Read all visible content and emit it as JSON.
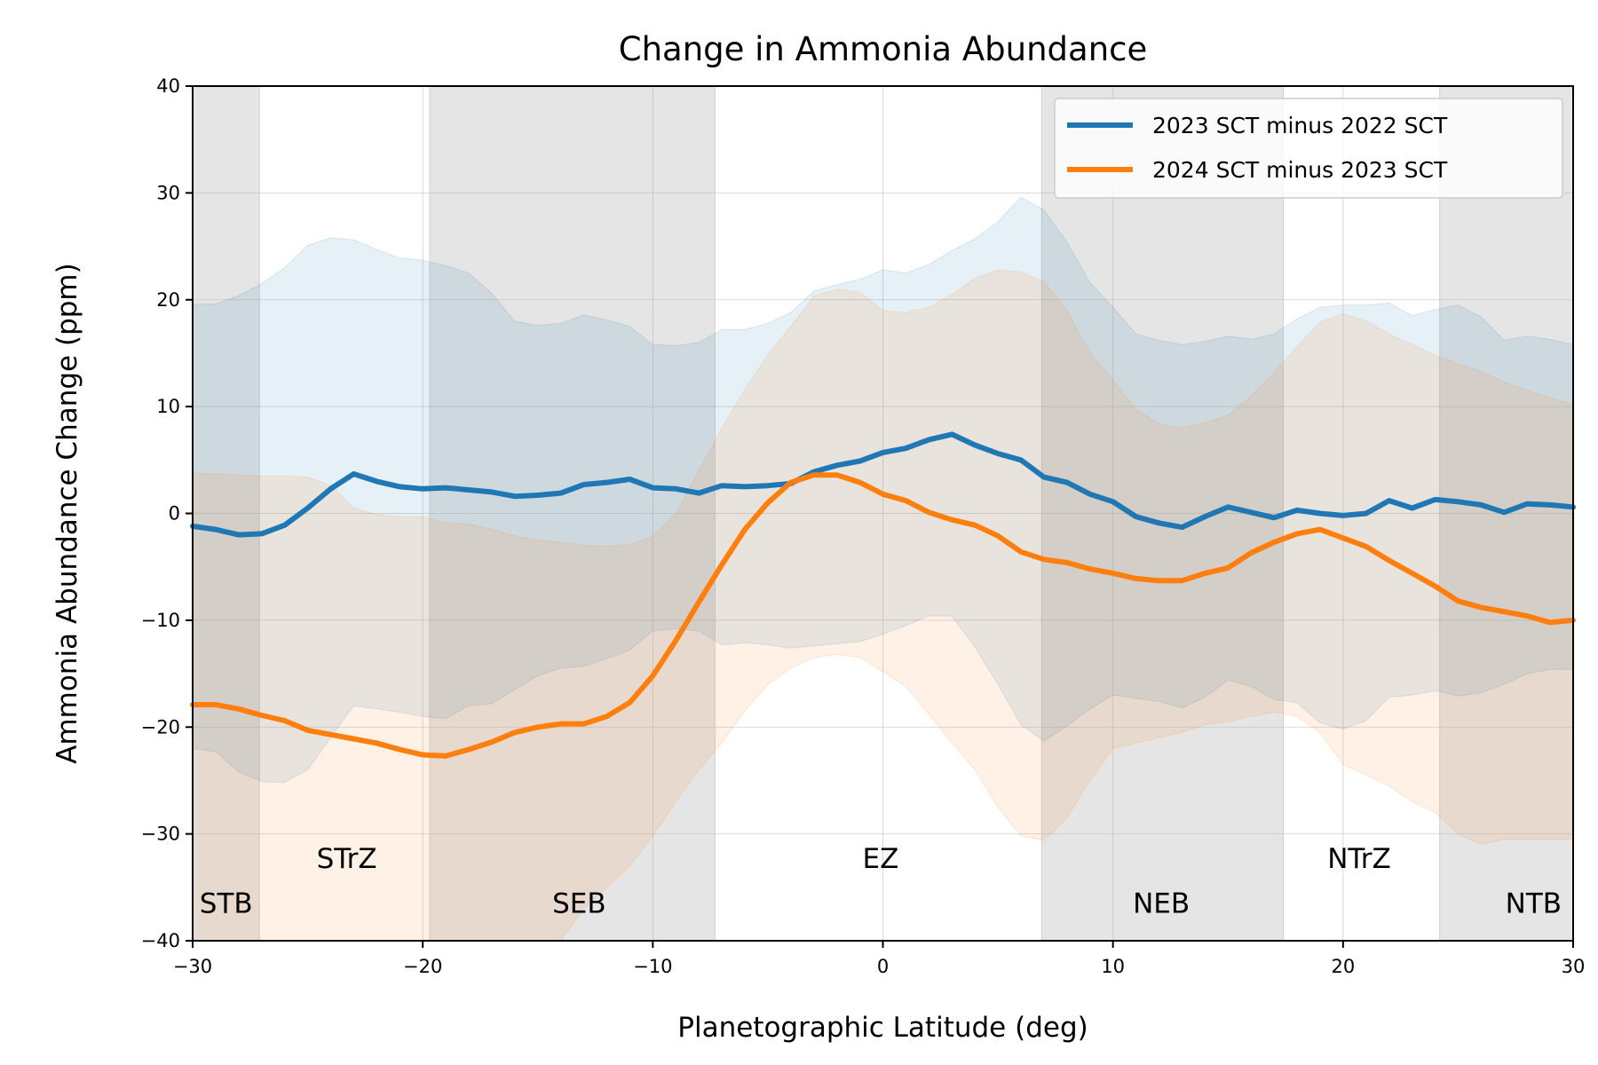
{
  "chart_data": {
    "type": "line",
    "title": "Change in Ammonia Abundance",
    "xlabel": "Planetographic Latitude (deg)",
    "ylabel": "Ammonia Abundance Change (ppm)",
    "xlim": [
      -30,
      30
    ],
    "ylim": [
      -40,
      40
    ],
    "xticks": [
      -30,
      -20,
      -10,
      0,
      10,
      20,
      30
    ],
    "xtick_labels": [
      "−30",
      "−20",
      "−10",
      "0",
      "10",
      "20",
      "30"
    ],
    "yticks": [
      -40,
      -30,
      -20,
      -10,
      0,
      10,
      20,
      30,
      40
    ],
    "ytick_labels": [
      "−40",
      "−30",
      "−20",
      "−10",
      "0",
      "10",
      "20",
      "30",
      "40"
    ],
    "grid": true,
    "legend_position": "top-right",
    "belts": [
      {
        "name": "STB",
        "x0": -30,
        "x1": -27.1
      },
      {
        "name": "SEB",
        "x0": -19.7,
        "x1": -7.3
      },
      {
        "name": "NEB",
        "x0": 6.9,
        "x1": 17.4
      },
      {
        "name": "NTB",
        "x0": 24.2,
        "x1": 30
      }
    ],
    "region_labels": [
      {
        "text": "STB",
        "x": -29.7,
        "y": -37.4,
        "anchor": "start"
      },
      {
        "text": "STrZ",
        "x": -23.3,
        "y": -33.2,
        "anchor": "middle"
      },
      {
        "text": "SEB",
        "x": -13.2,
        "y": -37.4,
        "anchor": "middle"
      },
      {
        "text": "EZ",
        "x": -0.1,
        "y": -33.2,
        "anchor": "middle"
      },
      {
        "text": "NEB",
        "x": 12.1,
        "y": -37.4,
        "anchor": "middle"
      },
      {
        "text": "NTrZ",
        "x": 20.7,
        "y": -33.2,
        "anchor": "middle"
      },
      {
        "text": "NTB",
        "x": 29.5,
        "y": -37.4,
        "anchor": "end"
      }
    ],
    "x": [
      -30,
      -29,
      -28,
      -27,
      -26,
      -25,
      -24,
      -23,
      -22,
      -21,
      -20,
      -19,
      -18,
      -17,
      -16,
      -15,
      -14,
      -13,
      -12,
      -11,
      -10,
      -9,
      -8,
      -7,
      -6,
      -5,
      -4,
      -3,
      -2,
      -1,
      0,
      1,
      2,
      3,
      4,
      5,
      6,
      7,
      8,
      9,
      10,
      11,
      12,
      13,
      14,
      15,
      16,
      17,
      18,
      19,
      20,
      21,
      22,
      23,
      24,
      25,
      26,
      27,
      28,
      29,
      30
    ],
    "series": [
      {
        "name": "2023 SCT minus 2022 SCT",
        "color": "#1f77b4",
        "values": [
          -1.2,
          -1.5,
          -2.0,
          -1.9,
          -1.1,
          0.5,
          2.3,
          3.7,
          3.0,
          2.5,
          2.3,
          2.4,
          2.2,
          2.0,
          1.6,
          1.7,
          1.9,
          2.7,
          2.9,
          3.2,
          2.4,
          2.3,
          1.9,
          2.6,
          2.5,
          2.6,
          2.8,
          3.9,
          4.5,
          4.9,
          5.7,
          6.1,
          6.9,
          7.4,
          6.4,
          5.6,
          5.0,
          3.4,
          2.9,
          1.8,
          1.1,
          -0.3,
          -0.9,
          -1.3,
          -0.3,
          0.6,
          0.1,
          -0.4,
          0.3,
          0.0,
          -0.2,
          0.0,
          1.2,
          0.5,
          1.3,
          1.1,
          0.8,
          0.1,
          0.9,
          0.8,
          0.6
        ],
        "upper": [
          19.6,
          19.6,
          20.4,
          21.5,
          23.0,
          25.1,
          25.8,
          25.6,
          24.7,
          23.9,
          23.7,
          23.2,
          22.5,
          20.6,
          18.0,
          17.6,
          17.8,
          18.6,
          18.1,
          17.5,
          15.8,
          15.7,
          16.0,
          17.2,
          17.2,
          17.8,
          18.8,
          20.8,
          21.4,
          21.9,
          22.8,
          22.5,
          23.3,
          24.6,
          25.7,
          27.3,
          29.6,
          28.4,
          25.4,
          21.6,
          19.3,
          16.8,
          16.2,
          15.8,
          16.1,
          16.6,
          16.3,
          16.8,
          18.2,
          19.3,
          19.5,
          19.5,
          19.7,
          18.5,
          19.1,
          19.5,
          18.4,
          16.2,
          16.6,
          16.3,
          15.8
        ],
        "lower": [
          -22.0,
          -22.3,
          -24.2,
          -25.1,
          -25.2,
          -24.0,
          -21.0,
          -18.0,
          -18.3,
          -18.6,
          -19.0,
          -19.2,
          -18.0,
          -17.8,
          -16.5,
          -15.2,
          -14.5,
          -14.3,
          -13.6,
          -12.8,
          -11.0,
          -10.8,
          -11.0,
          -12.3,
          -12.1,
          -12.3,
          -12.6,
          -12.4,
          -12.2,
          -12.0,
          -11.3,
          -10.5,
          -9.6,
          -9.6,
          -12.5,
          -16.0,
          -19.8,
          -21.3,
          -19.9,
          -18.3,
          -17.0,
          -17.3,
          -17.6,
          -18.2,
          -17.2,
          -15.6,
          -16.2,
          -17.4,
          -17.7,
          -19.6,
          -20.2,
          -19.4,
          -17.2,
          -17.0,
          -16.6,
          -17.1,
          -16.8,
          -16.0,
          -15.0,
          -14.6,
          -14.6
        ]
      },
      {
        "name": "2024 SCT minus 2023 SCT",
        "color": "#ff7f0e",
        "values": [
          -17.9,
          -17.9,
          -18.3,
          -18.9,
          -19.4,
          -20.3,
          -20.7,
          -21.1,
          -21.5,
          -22.1,
          -22.6,
          -22.7,
          -22.1,
          -21.4,
          -20.5,
          -20.0,
          -19.7,
          -19.7,
          -19.0,
          -17.7,
          -15.2,
          -11.9,
          -8.3,
          -4.8,
          -1.5,
          1.0,
          2.9,
          3.6,
          3.6,
          2.9,
          1.8,
          1.2,
          0.1,
          -0.6,
          -1.1,
          -2.1,
          -3.6,
          -4.3,
          -4.6,
          -5.2,
          -5.6,
          -6.1,
          -6.3,
          -6.3,
          -5.6,
          -5.1,
          -3.7,
          -2.7,
          -1.9,
          -1.5,
          -2.3,
          -3.1,
          -4.4,
          -5.6,
          -6.8,
          -8.2,
          -8.8,
          -9.2,
          -9.6,
          -10.2,
          -10.0
        ]
      }
    ],
    "orange_band_upper": [
      3.8,
      3.7,
      3.6,
      3.5,
      3.5,
      3.4,
      2.6,
      0.5,
      -0.1,
      -0.3,
      -0.3,
      -0.9,
      -1.0,
      -1.5,
      -2.1,
      -2.5,
      -2.7,
      -3.0,
      -3.1,
      -2.9,
      -2.2,
      0.0,
      4.0,
      8.0,
      11.6,
      14.8,
      17.5,
      20.3,
      21.0,
      20.7,
      19.0,
      18.8,
      19.3,
      20.5,
      22.0,
      22.8,
      22.6,
      21.7,
      19.0,
      15.0,
      12.5,
      9.7,
      8.4,
      8.0,
      8.5,
      9.2,
      11.0,
      13.2,
      15.6,
      17.9,
      18.7,
      18.0,
      16.8,
      15.8,
      14.8,
      14.0,
      13.3,
      12.3,
      11.5,
      10.8,
      10.2
    ],
    "orange_band_lower": [
      -40.0,
      -40.0,
      -40.0,
      -40.0,
      -40.0,
      -40.0,
      -40.0,
      -40.0,
      -40.0,
      -40.0,
      -40.0,
      -40.0,
      -40.0,
      -40.0,
      -40.0,
      -40.0,
      -40.0,
      -37.0,
      -35.0,
      -33.0,
      -30.2,
      -27.0,
      -24.0,
      -21.5,
      -18.5,
      -16.0,
      -14.5,
      -13.5,
      -13.2,
      -13.5,
      -14.8,
      -16.2,
      -18.8,
      -21.5,
      -24.0,
      -27.5,
      -30.2,
      -30.6,
      -28.5,
      -25.0,
      -22.0,
      -21.5,
      -21.0,
      -20.5,
      -19.8,
      -19.5,
      -19.0,
      -18.6,
      -19.0,
      -20.5,
      -23.5,
      -24.5,
      -25.5,
      -27.0,
      -28.0,
      -30.0,
      -31.0,
      -30.5,
      -30.5,
      -30.5,
      -30.5
    ]
  }
}
